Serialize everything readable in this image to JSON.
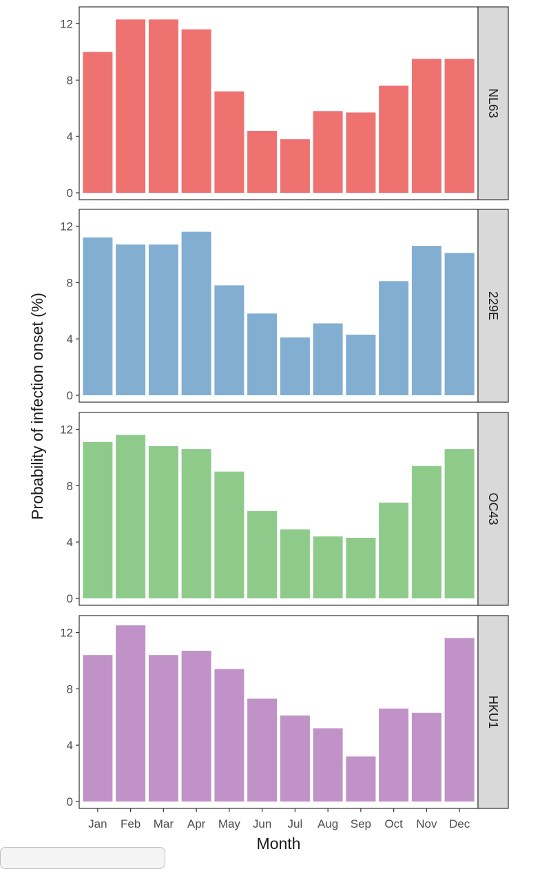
{
  "chart_data": {
    "type": "bar",
    "layout": "faceted-vertical",
    "xlabel": "Month",
    "ylabel": "Probability of infection onset (%)",
    "categories": [
      "Jan",
      "Feb",
      "Mar",
      "Apr",
      "May",
      "Jun",
      "Jul",
      "Aug",
      "Sep",
      "Oct",
      "Nov",
      "Dec"
    ],
    "ylim": [
      0,
      13
    ],
    "yticks": [
      0,
      4,
      8,
      12
    ],
    "grid": false,
    "facet_strip_position": "right",
    "panels": [
      {
        "name": "NL63",
        "color": "#ee7270",
        "values": [
          10.0,
          12.3,
          12.3,
          11.6,
          7.2,
          4.4,
          3.8,
          5.8,
          5.7,
          7.6,
          9.5,
          9.5
        ]
      },
      {
        "name": "229E",
        "color": "#82aed2",
        "values": [
          11.2,
          10.7,
          10.7,
          11.6,
          7.8,
          5.8,
          4.1,
          5.1,
          4.3,
          8.1,
          10.6,
          10.1
        ]
      },
      {
        "name": "OC43",
        "color": "#8ecb8a",
        "values": [
          11.1,
          11.6,
          10.8,
          10.6,
          9.0,
          6.2,
          4.9,
          4.4,
          4.3,
          6.8,
          9.4,
          10.6
        ]
      },
      {
        "name": "HKU1",
        "color": "#c092c8",
        "values": [
          10.4,
          12.5,
          10.4,
          10.7,
          9.4,
          7.3,
          6.1,
          5.2,
          3.2,
          6.6,
          6.3,
          11.6
        ]
      }
    ]
  }
}
